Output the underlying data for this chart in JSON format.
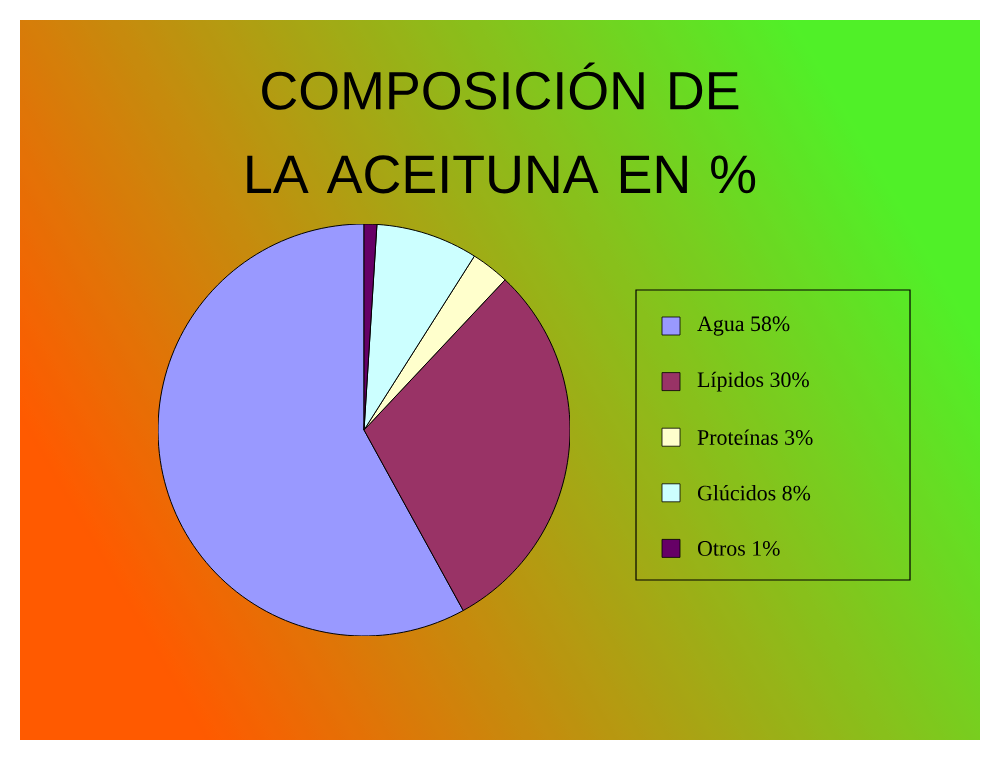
{
  "chart_data": {
    "type": "pie",
    "title": "COMPOSICIÓN DE LA ACEITUNA EN %",
    "categories": [
      "Agua 58%",
      "Lípidos 30%",
      "Proteínas 3%",
      "Glúcidos 8%",
      "Otros 1%"
    ],
    "values": [
      58,
      30,
      3,
      8,
      1
    ],
    "colors": [
      "#9999ff",
      "#993366",
      "#ffffcc",
      "#ccffff",
      "#660066"
    ],
    "legend": "right"
  }
}
